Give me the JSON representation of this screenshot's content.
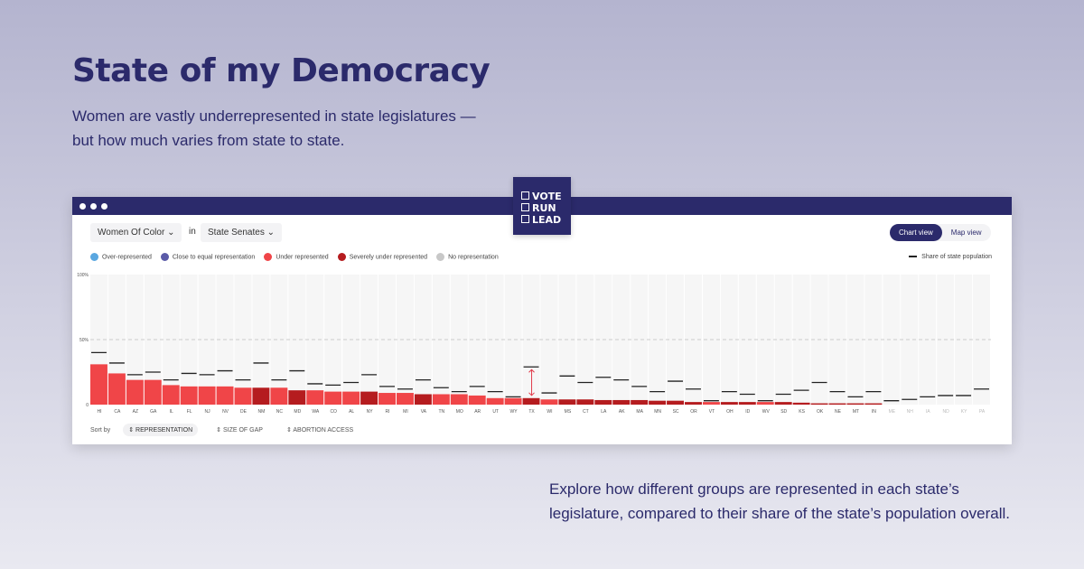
{
  "title": "State of my Democracy",
  "subtitle": "Women are vastly underrepresented in state legislatures — but how much varies from state to state.",
  "footer": "Explore how different groups are represented in each state’s legislature, compared to their share of the state’s population overall.",
  "logo": [
    "VOTE",
    "RUN",
    "LEAD"
  ],
  "controls": {
    "group": "Women Of Color",
    "in": "in",
    "chamber": "State Senates",
    "chart_view": "Chart view",
    "map_view": "Map view"
  },
  "legend": [
    {
      "label": "Over-represented",
      "color": "#5aa7e0"
    },
    {
      "label": "Close to equal representation",
      "color": "#5b5ba8"
    },
    {
      "label": "Under represented",
      "color": "#f04548"
    },
    {
      "label": "Severely under represented",
      "color": "#b51c1f"
    },
    {
      "label": "No representation",
      "color": "#c8c8c8"
    }
  ],
  "pop_legend": "Share of state population",
  "sort": {
    "label": "Sort by",
    "options": [
      "REPRESENTATION",
      "SIZE OF GAP",
      "ABORTION ACCESS"
    ],
    "active": "REPRESENTATION"
  },
  "chart_data": {
    "type": "bar",
    "ylim": [
      0,
      100
    ],
    "yticks": [
      "100%",
      "50%",
      "0"
    ],
    "grid": "dashed line at 50%",
    "categories": [
      "HI",
      "CA",
      "AZ",
      "GA",
      "IL",
      "FL",
      "NJ",
      "NV",
      "DE",
      "NM",
      "NC",
      "MD",
      "WA",
      "CO",
      "AL",
      "NY",
      "RI",
      "MI",
      "VA",
      "TN",
      "MO",
      "AR",
      "UT",
      "WY",
      "TX",
      "WI",
      "MS",
      "CT",
      "LA",
      "AK",
      "MA",
      "MN",
      "SC",
      "OR",
      "VT",
      "OH",
      "ID",
      "WV",
      "SD",
      "KS",
      "OK",
      "NE",
      "MT",
      "IN",
      "ME",
      "NH",
      "IA",
      "ND",
      "KY",
      "PA"
    ],
    "series": [
      {
        "name": "Representation",
        "values": [
          31,
          24,
          19,
          19,
          15,
          14,
          14,
          14,
          13,
          13,
          13,
          11,
          11,
          10,
          10,
          10,
          9,
          9,
          8,
          8,
          8,
          7,
          5,
          5,
          5,
          4,
          4,
          4,
          3.5,
          3.5,
          3.5,
          3,
          3,
          2,
          2,
          2,
          2,
          2,
          2,
          1.5,
          1,
          1,
          1,
          1,
          0,
          0,
          0,
          0,
          0,
          0
        ]
      },
      {
        "name": "Share of state population",
        "values": [
          40,
          32,
          23,
          25,
          19,
          24,
          23,
          26,
          19,
          32,
          19,
          26,
          16,
          15,
          17,
          23,
          14,
          12,
          19,
          13,
          10,
          14,
          10,
          6,
          29,
          9,
          22,
          17,
          21,
          19,
          14,
          10,
          18,
          12,
          3,
          10,
          8,
          3,
          8,
          11,
          17,
          10,
          6,
          10,
          3,
          4,
          6,
          7,
          7,
          12
        ]
      }
    ],
    "status": [
      "under",
      "under",
      "under",
      "under",
      "under",
      "under",
      "under",
      "under",
      "under",
      "severe",
      "under",
      "severe",
      "under",
      "under",
      "under",
      "severe",
      "under",
      "under",
      "severe",
      "under",
      "under",
      "under",
      "under",
      "under",
      "severe",
      "under",
      "severe",
      "severe",
      "severe",
      "severe",
      "severe",
      "severe",
      "severe",
      "severe",
      "under",
      "severe",
      "severe",
      "under",
      "severe",
      "severe",
      "severe",
      "severe",
      "severe",
      "severe",
      "none",
      "none",
      "none",
      "none",
      "none",
      "none"
    ],
    "highlight": "TX"
  }
}
